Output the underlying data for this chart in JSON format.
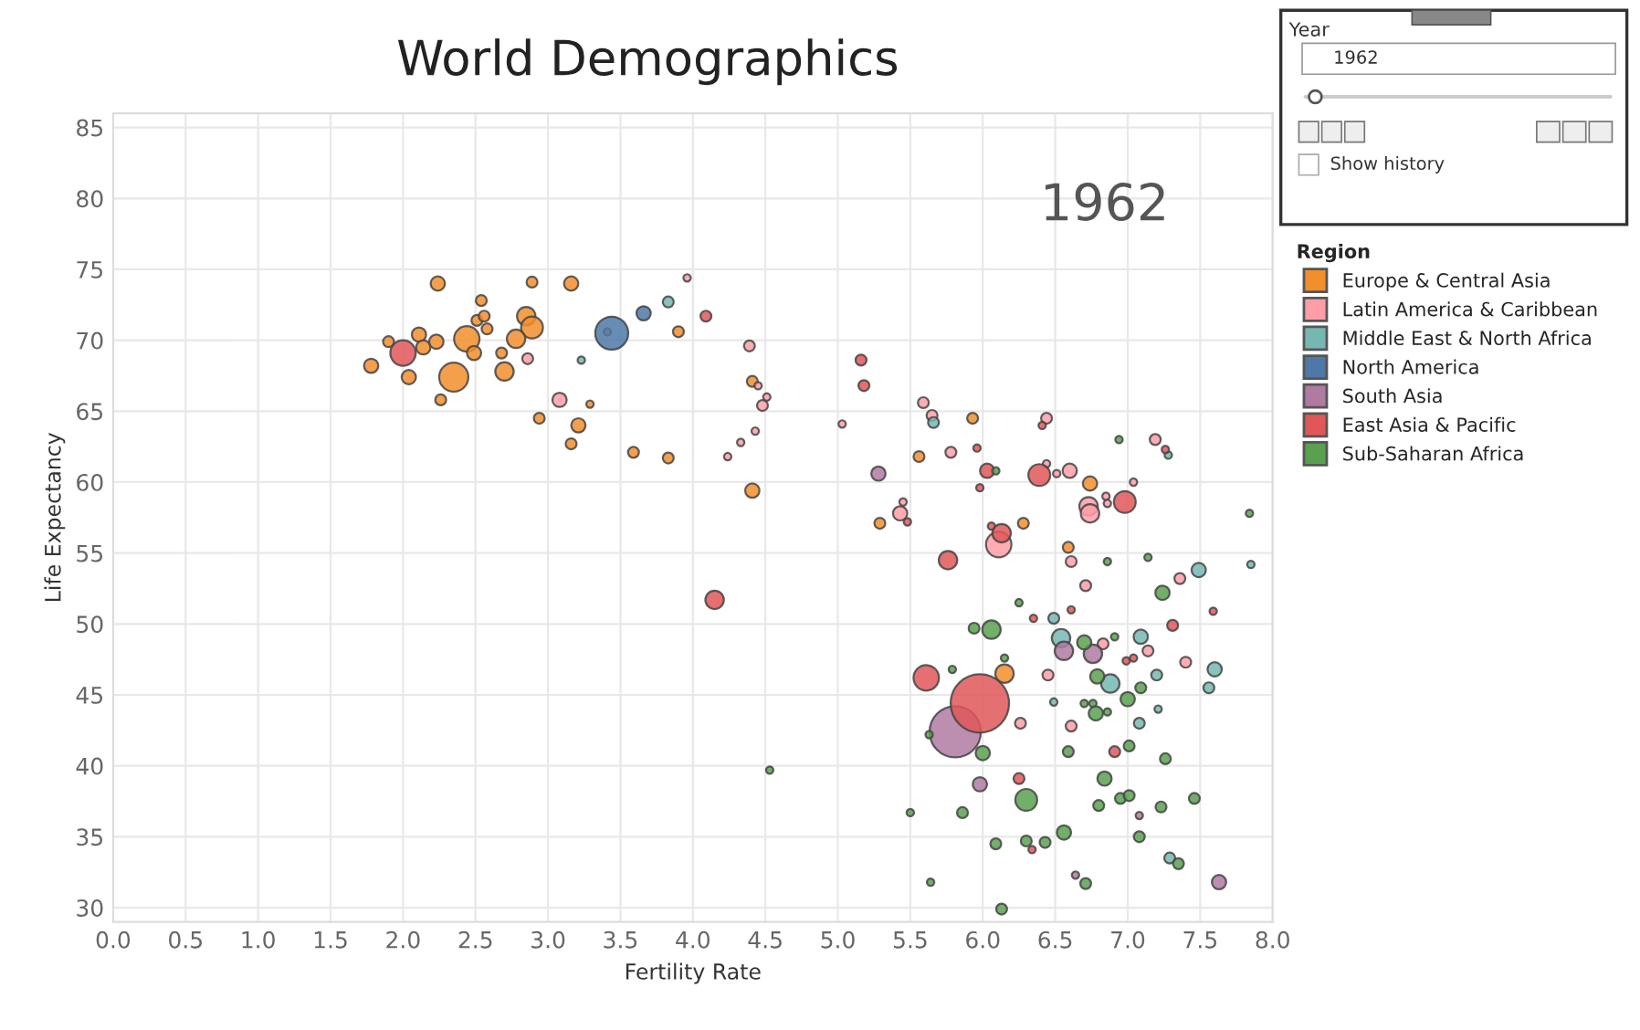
{
  "chart_data": {
    "type": "bubble",
    "title": "World Demographics",
    "xlabel": "Fertility Rate",
    "ylabel": "Life Expectancy",
    "legend_title": "Region",
    "annotations": [
      "1962",
      "Year",
      "1962",
      "Show history"
    ],
    "xlim": [
      0,
      8
    ],
    "ylim": [
      29,
      86
    ],
    "xticks": [
      {
        "value": 0,
        "label": "0.0"
      },
      {
        "value": 0.5,
        "label": "0.5"
      },
      {
        "value": 1,
        "label": "1.0"
      },
      {
        "value": 1.5,
        "label": "1.5"
      },
      {
        "value": 2,
        "label": "2.0"
      },
      {
        "value": 2.5,
        "label": "2.5"
      },
      {
        "value": 3,
        "label": "3.0"
      },
      {
        "value": 3.5,
        "label": "3.5"
      },
      {
        "value": 4,
        "label": "4.0"
      },
      {
        "value": 4.5,
        "label": "4.5"
      },
      {
        "value": 5,
        "label": "5.0"
      },
      {
        "value": 5.5,
        "label": "5.5"
      },
      {
        "value": 6,
        "label": "6.0"
      },
      {
        "value": 6.5,
        "label": "6.5"
      },
      {
        "value": 7,
        "label": "7.0"
      },
      {
        "value": 7.5,
        "label": "7.5"
      },
      {
        "value": 8,
        "label": "8.0"
      }
    ],
    "yticks": [
      30,
      35,
      40,
      45,
      50,
      55,
      60,
      65,
      70,
      75,
      80,
      85
    ],
    "grid": true,
    "legend": "right",
    "marker": "circle",
    "series": [
      {
        "name": "Europe & Central Asia",
        "color": "#f28e2b",
        "x": [
          2.24,
          2.89,
          3.16,
          2.54,
          2.51,
          2.56,
          2.58,
          2.85,
          2.89,
          2.78,
          1.9,
          1.78,
          2.11,
          2.14,
          2.23,
          2.44,
          2.35,
          2.49,
          2.68,
          2.7,
          2.04,
          2.26,
          2.94,
          3.21,
          3.16,
          3.59,
          3.83,
          3.9,
          4.41,
          4.41,
          3.41,
          3.29,
          5.93,
          5.56,
          6.74,
          5.29,
          6.28,
          6.59,
          6.15
        ],
        "values": [
          74.0,
          74.1,
          74.0,
          72.8,
          71.4,
          71.7,
          70.8,
          71.7,
          70.9,
          70.1,
          69.9,
          68.2,
          70.4,
          69.5,
          69.9,
          70.1,
          67.4,
          69.1,
          69.1,
          67.8,
          67.4,
          65.8,
          64.5,
          64.0,
          62.7,
          62.1,
          61.7,
          70.6,
          67.1,
          59.4,
          70.6,
          65.5,
          64.5,
          61.8,
          59.9,
          57.1,
          57.1,
          55.4,
          46.5
        ],
        "sizes": [
          0.06,
          0.035,
          0.06,
          0.035,
          0.035,
          0.035,
          0.035,
          0.1,
          0.14,
          0.1,
          0.035,
          0.06,
          0.06,
          0.06,
          0.06,
          0.19,
          0.25,
          0.06,
          0.035,
          0.1,
          0.06,
          0.035,
          0.035,
          0.06,
          0.035,
          0.035,
          0.035,
          0.035,
          0.035,
          0.06,
          0.016,
          0.016,
          0.035,
          0.035,
          0.06,
          0.035,
          0.035,
          0.035,
          0.1
        ]
      },
      {
        "name": "Latin America & Caribbean",
        "color": "#ff9da7",
        "x": [
          2.86,
          3.08,
          4.39,
          4.48,
          3.96,
          4.33,
          4.24,
          4.43,
          4.45,
          4.51,
          5.03,
          5.59,
          5.65,
          5.78,
          6.44,
          6.44,
          6.51,
          6.6,
          7.19,
          7.04,
          6.85,
          6.86,
          6.73,
          6.74,
          5.45,
          5.43,
          6.11,
          6.61,
          7.36,
          6.71,
          6.83,
          7.14,
          7.4,
          6.45,
          6.26,
          6.61
        ],
        "values": [
          68.7,
          65.8,
          69.6,
          65.4,
          74.4,
          62.8,
          61.8,
          63.6,
          66.8,
          66.0,
          64.1,
          65.6,
          64.7,
          62.1,
          64.5,
          61.3,
          60.6,
          60.8,
          63.0,
          60.0,
          59.0,
          58.5,
          58.3,
          57.8,
          58.6,
          57.8,
          55.6,
          54.4,
          53.2,
          52.7,
          48.6,
          48.1,
          47.3,
          46.4,
          43.0,
          42.8
        ],
        "sizes": [
          0.035,
          0.06,
          0.035,
          0.035,
          0.016,
          0.016,
          0.016,
          0.016,
          0.016,
          0.016,
          0.016,
          0.035,
          0.035,
          0.035,
          0.035,
          0.016,
          0.016,
          0.06,
          0.035,
          0.016,
          0.016,
          0.016,
          0.1,
          0.1,
          0.016,
          0.06,
          0.19,
          0.035,
          0.035,
          0.035,
          0.035,
          0.035,
          0.035,
          0.035,
          0.035,
          0.035
        ]
      },
      {
        "name": "Middle East & North Africa",
        "color": "#76b7b2",
        "x": [
          3.83,
          3.23,
          5.66,
          7.28,
          7.49,
          7.85,
          6.49,
          6.54,
          7.09,
          7.6,
          6.88,
          7.2,
          7.56,
          6.49,
          7.21,
          7.08,
          7.29
        ],
        "values": [
          72.7,
          68.6,
          64.2,
          61.9,
          53.8,
          54.2,
          50.4,
          49.0,
          49.1,
          46.8,
          45.8,
          46.4,
          45.5,
          44.5,
          44.0,
          43.0,
          33.5
        ],
        "sizes": [
          0.035,
          0.016,
          0.035,
          0.016,
          0.06,
          0.016,
          0.035,
          0.1,
          0.06,
          0.06,
          0.1,
          0.035,
          0.035,
          0.016,
          0.016,
          0.035,
          0.035
        ]
      },
      {
        "name": "North America",
        "color": "#4e79a7",
        "x": [
          3.44,
          3.66
        ],
        "values": [
          70.5,
          71.9
        ],
        "sizes": [
          0.32,
          0.06
        ]
      },
      {
        "name": "South Asia",
        "color": "#b07aa1",
        "x": [
          5.28,
          6.56,
          6.76,
          5.81,
          5.98,
          7.08,
          6.64,
          7.63
        ],
        "values": [
          60.6,
          48.1,
          47.9,
          42.4,
          38.7,
          36.5,
          32.3,
          31.8
        ],
        "sizes": [
          0.06,
          0.1,
          0.1,
          0.77,
          0.06,
          0.016,
          0.016,
          0.06
        ]
      },
      {
        "name": "East Asia & Pacific",
        "color": "#e15759",
        "x": [
          2.0,
          4.09,
          5.16,
          5.18,
          5.96,
          6.03,
          5.98,
          6.41,
          6.39,
          7.26,
          6.98,
          5.48,
          6.06,
          6.13,
          5.76,
          6.61,
          6.35,
          7.59,
          4.15,
          7.31,
          6.99,
          7.04,
          5.61,
          5.98,
          6.91,
          6.25,
          6.34
        ],
        "values": [
          69.1,
          71.7,
          68.6,
          66.8,
          62.4,
          60.8,
          59.6,
          64.0,
          60.5,
          62.3,
          58.6,
          57.2,
          56.9,
          56.4,
          54.5,
          51.0,
          50.4,
          50.9,
          51.7,
          49.9,
          47.4,
          47.6,
          46.2,
          44.4,
          41.0,
          39.1,
          34.1
        ],
        "sizes": [
          0.19,
          0.035,
          0.035,
          0.035,
          0.016,
          0.06,
          0.016,
          0.016,
          0.14,
          0.016,
          0.14,
          0.016,
          0.016,
          0.1,
          0.1,
          0.016,
          0.016,
          0.016,
          0.1,
          0.035,
          0.016,
          0.016,
          0.19,
          1,
          0.035,
          0.035,
          0.016
        ]
      },
      {
        "name": "Sub-Saharan Africa",
        "color": "#59a14f",
        "x": [
          6.09,
          6.94,
          6.86,
          7.14,
          7.24,
          6.25,
          5.94,
          6.06,
          6.7,
          6.91,
          5.79,
          6.15,
          6.79,
          7.09,
          6.7,
          6.76,
          6.78,
          6.86,
          7.0,
          5.63,
          6.0,
          6.59,
          7.01,
          7.26,
          6.84,
          6.3,
          5.5,
          5.86,
          6.8,
          6.95,
          7.01,
          7.23,
          7.46,
          6.56,
          6.09,
          6.3,
          6.43,
          7.08,
          7.35,
          5.64,
          6.71,
          6.13,
          4.53,
          7.84
        ],
        "values": [
          60.8,
          63.0,
          54.4,
          54.7,
          52.2,
          51.5,
          49.7,
          49.6,
          48.7,
          49.1,
          46.8,
          47.6,
          46.3,
          45.5,
          44.4,
          44.4,
          43.7,
          43.8,
          44.7,
          42.2,
          40.9,
          41.0,
          41.4,
          40.5,
          39.1,
          37.6,
          36.7,
          36.7,
          37.2,
          37.7,
          37.9,
          37.1,
          37.7,
          35.3,
          34.5,
          34.7,
          34.6,
          35.0,
          33.1,
          31.8,
          31.7,
          29.9,
          39.7,
          57.8
        ],
        "sizes": [
          0.016,
          0.016,
          0.016,
          0.016,
          0.06,
          0.016,
          0.035,
          0.1,
          0.06,
          0.016,
          0.016,
          0.016,
          0.06,
          0.035,
          0.016,
          0.016,
          0.06,
          0.016,
          0.06,
          0.016,
          0.06,
          0.035,
          0.035,
          0.035,
          0.06,
          0.14,
          0.016,
          0.035,
          0.035,
          0.035,
          0.035,
          0.035,
          0.035,
          0.06,
          0.035,
          0.035,
          0.035,
          0.035,
          0.035,
          0.016,
          0.035,
          0.035,
          0.016,
          0.016
        ]
      }
    ]
  }
}
